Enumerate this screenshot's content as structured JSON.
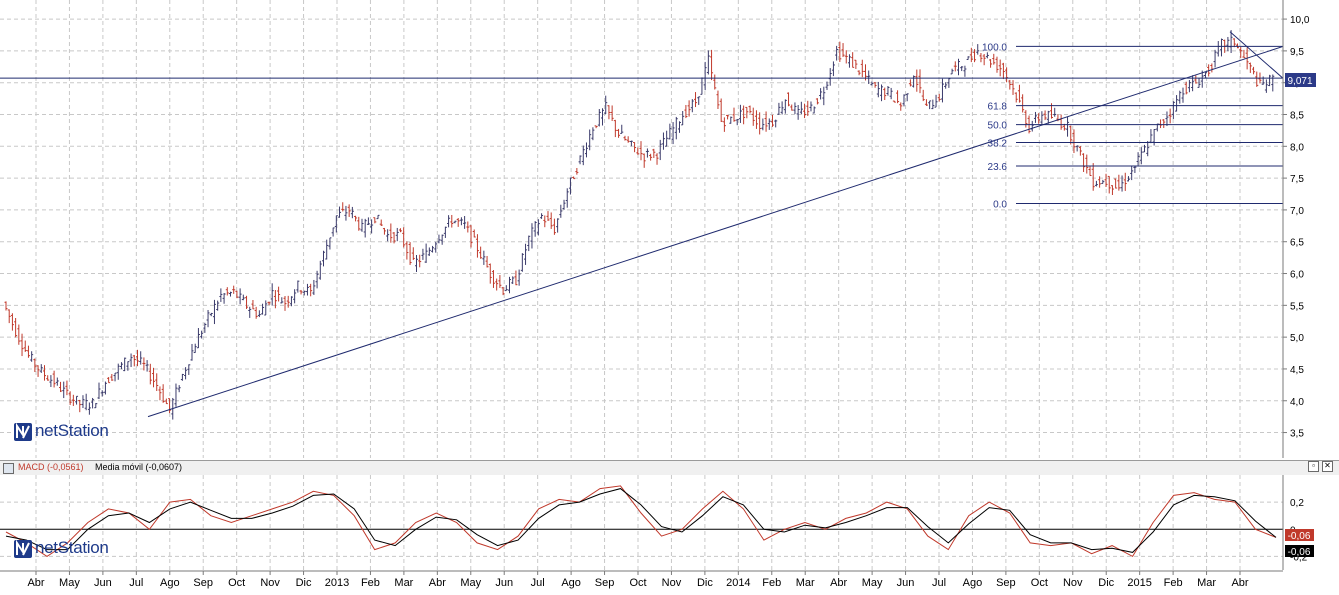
{
  "logo": {
    "text": "netStation"
  },
  "main_panel": {
    "last_price_tag": "9,071",
    "fib_labels": [
      "100.0",
      "61.8",
      "50.0",
      "38.2",
      "23.6",
      "0.0"
    ]
  },
  "macd_panel": {
    "title_macd": "MACD (-0,0561)",
    "title_ma": "Media móvil (-0,0607)",
    "value_tag_1": "-0,06",
    "value_tag_2": "-0,06",
    "maximize_icon": "maximize-icon",
    "close_icon": "close-icon"
  },
  "x_axis_labels": [
    "Abr",
    "May",
    "Jun",
    "Jul",
    "Ago",
    "Sep",
    "Oct",
    "Nov",
    "Dic",
    "2013",
    "Feb",
    "Mar",
    "Abr",
    "May",
    "Jun",
    "Jul",
    "Ago",
    "Sep",
    "Oct",
    "Nov",
    "Dic",
    "2014",
    "Feb",
    "Mar",
    "Abr",
    "May",
    "Jun",
    "Jul",
    "Ago",
    "Sep",
    "Oct",
    "Nov",
    "Dic",
    "2015",
    "Feb",
    "Mar",
    "Abr"
  ],
  "chart_data": [
    {
      "type": "line",
      "title": "",
      "ylim": [
        3.1,
        10.3
      ],
      "y_ticks": [
        "10,0",
        "9,5",
        "9,0",
        "8,5",
        "8,0",
        "7,5",
        "7,0",
        "6,5",
        "6,0",
        "5,5",
        "5,0",
        "4,5",
        "4,0",
        "3,5"
      ],
      "grid": true,
      "horizontal_line": 9.071,
      "trendline": {
        "from": {
          "x": "Jul 2012",
          "y": 3.75
        },
        "to": {
          "x": "Abr 2015",
          "y": 9.57
        }
      },
      "fibonacci": {
        "levels": [
          {
            "label": "100.0",
            "y": 9.57
          },
          {
            "label": "61.8",
            "y": 8.64
          },
          {
            "label": "50.0",
            "y": 8.34
          },
          {
            "label": "38.2",
            "y": 8.06
          },
          {
            "label": "23.6",
            "y": 7.69
          },
          {
            "label": "0.0",
            "y": 7.1
          }
        ]
      },
      "series": [
        {
          "values": [
            5.55,
            5.1,
            4.7,
            4.45,
            4.3,
            4.1,
            3.95,
            3.95,
            4.3,
            4.5,
            4.7,
            4.55,
            4.25,
            3.85,
            4.4,
            4.9,
            5.3,
            5.65,
            5.7,
            5.5,
            5.35,
            5.7,
            5.55,
            5.8,
            5.7,
            6.3,
            6.9,
            7.0,
            6.7,
            6.9,
            6.6,
            6.6,
            6.15,
            6.3,
            6.6,
            6.85,
            6.75,
            6.4,
            6.0,
            5.75,
            5.9,
            6.55,
            6.9,
            6.7,
            7.3,
            7.8,
            8.3,
            8.6,
            8.2,
            8.0,
            7.85,
            7.9,
            8.2,
            8.5,
            8.7,
            9.35,
            8.4,
            8.45,
            8.55,
            8.35,
            8.4,
            8.75,
            8.5,
            8.6,
            8.9,
            9.5,
            9.35,
            9.15,
            8.9,
            8.85,
            8.65,
            9.15,
            8.6,
            8.8,
            9.2,
            9.3,
            9.5,
            9.35,
            9.2,
            8.8,
            8.3,
            8.5,
            8.45,
            8.3,
            7.85,
            7.45,
            7.45,
            7.35,
            7.6,
            7.95,
            8.3,
            8.55,
            8.9,
            9.0,
            9.2,
            9.6,
            9.65,
            9.3,
            8.95,
            9.05
          ]
        }
      ]
    },
    {
      "type": "line",
      "title": "",
      "ylim": [
        -0.3,
        0.4
      ],
      "y_ticks": [
        "0,2",
        "0",
        "-0,2"
      ],
      "series": [
        {
          "name": "MACD (-0,0561)",
          "values": [
            -0.02,
            -0.1,
            -0.2,
            -0.1,
            0.05,
            0.15,
            0.12,
            0.0,
            0.2,
            0.22,
            0.1,
            0.05,
            0.1,
            0.15,
            0.2,
            0.28,
            0.25,
            0.1,
            -0.15,
            -0.1,
            0.05,
            0.12,
            0.05,
            -0.1,
            -0.15,
            -0.05,
            0.15,
            0.22,
            0.2,
            0.3,
            0.32,
            0.12,
            -0.05,
            0.0,
            0.15,
            0.28,
            0.15,
            -0.08,
            0.0,
            0.05,
            0.0,
            0.08,
            0.12,
            0.2,
            0.15,
            -0.05,
            -0.15,
            0.1,
            0.2,
            0.12,
            -0.1,
            -0.12,
            -0.1,
            -0.18,
            -0.12,
            -0.2,
            0.05,
            0.25,
            0.27,
            0.22,
            0.2,
            0.0,
            -0.06
          ]
        },
        {
          "name": "Media móvil (-0,0607)",
          "values": [
            -0.05,
            -0.08,
            -0.15,
            -0.15,
            0.0,
            0.1,
            0.12,
            0.05,
            0.15,
            0.2,
            0.14,
            0.08,
            0.08,
            0.12,
            0.17,
            0.25,
            0.26,
            0.15,
            -0.08,
            -0.12,
            0.0,
            0.09,
            0.07,
            -0.04,
            -0.12,
            -0.08,
            0.08,
            0.18,
            0.2,
            0.26,
            0.3,
            0.18,
            0.02,
            -0.02,
            0.1,
            0.24,
            0.18,
            0.0,
            -0.02,
            0.03,
            0.01,
            0.05,
            0.1,
            0.16,
            0.16,
            0.02,
            -0.1,
            0.04,
            0.16,
            0.14,
            -0.04,
            -0.1,
            -0.1,
            -0.15,
            -0.14,
            -0.17,
            -0.02,
            0.18,
            0.25,
            0.24,
            0.21,
            0.06,
            -0.06
          ]
        }
      ]
    }
  ],
  "colors": {
    "up_bar": "#3a3a6a",
    "down_bar": "#c0392b",
    "line": "#1f2a6e",
    "grid": "#c8c8c8",
    "macd_line": "#c0392b",
    "signal_line": "#000000",
    "tag_bg": "#2c3a88"
  }
}
